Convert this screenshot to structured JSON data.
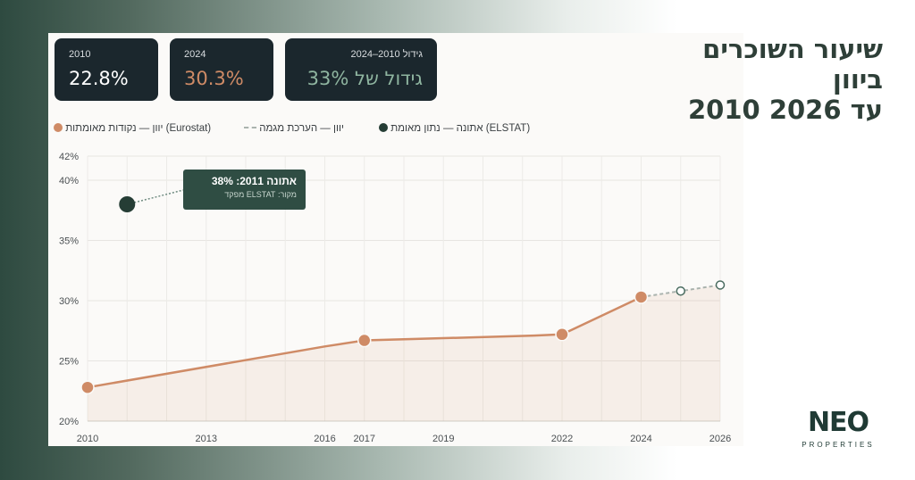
{
  "title": {
    "line1": "שיעור השוכרים ביוון",
    "line2": "2010 עד 2026"
  },
  "cards": [
    {
      "label": "2010",
      "value": "22.8%"
    },
    {
      "label": "2024",
      "value": "30.3%"
    },
    {
      "label": "גידול 2010–2024",
      "value": "גידול של 33%"
    }
  ],
  "legend": [
    {
      "label": "יוון — נקודות מאומתות (Eurostat)",
      "color": "#cf8b66",
      "marker": "dot"
    },
    {
      "label": "יוון — הערכת מגמה",
      "color": "#aab3ae",
      "marker": "dash"
    },
    {
      "label": "אתונה — נתון מאומת (ELSTAT)",
      "color": "#253d35",
      "marker": "dot"
    }
  ],
  "tooltip": {
    "line1": "אתונה 2011: 38%",
    "line2": "מקור: ELSTAT מפקד"
  },
  "logo": {
    "wordmark": "NEO",
    "tagline": "PROPERTIES"
  },
  "chart_data": {
    "type": "line",
    "y_ticks": [
      "20%",
      "25%",
      "30%",
      "35%",
      "40%",
      "42%"
    ],
    "x_ticks": [
      "2010",
      "2013",
      "2016",
      "2017",
      "2019",
      "2022",
      "2024",
      "2026"
    ],
    "ylim": [
      20,
      42
    ],
    "xlim": [
      2010,
      2026
    ],
    "grid": true,
    "legend_position": "top",
    "series": [
      {
        "name": "יוון — נקודות מאומתות (Eurostat)",
        "color": "#cf8b66",
        "line_x": [
          2010,
          2016,
          2017,
          2021.3,
          2022,
          2024
        ],
        "line_y": [
          22.8,
          26.2,
          26.7,
          27.1,
          27.2,
          30.3
        ],
        "points_x": [
          2010,
          2017,
          2022,
          2024
        ],
        "points_y": [
          22.8,
          26.7,
          27.2,
          30.3
        ]
      },
      {
        "name": "יוון — הערכת מגמה",
        "color": "#aab3ae",
        "x": [
          2024,
          2025,
          2026
        ],
        "y": [
          30.3,
          30.8,
          31.3
        ]
      },
      {
        "name": "אתונה — נתון מאומת (ELSTAT)",
        "color": "#253d35",
        "x": [
          2011
        ],
        "y": [
          38
        ]
      }
    ]
  }
}
